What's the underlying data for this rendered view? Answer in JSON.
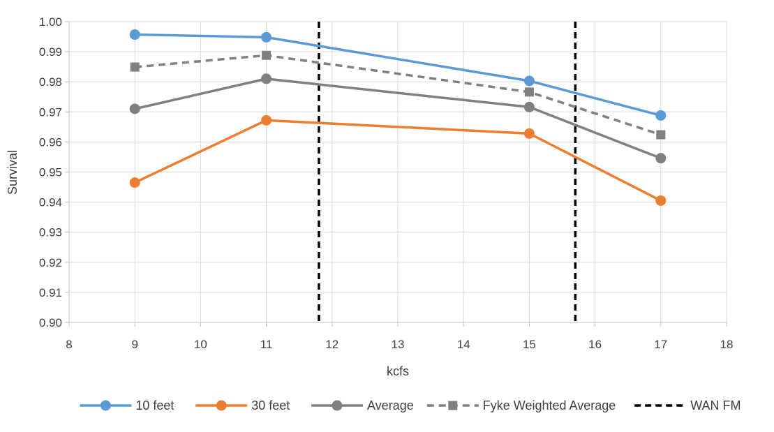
{
  "chart_data": {
    "type": "line",
    "title": "",
    "xlabel": "kcfs",
    "ylabel": "Survival",
    "xlim": [
      8,
      18
    ],
    "ylim": [
      0.9,
      1.0
    ],
    "x_ticks": [
      "8",
      "9",
      "10",
      "11",
      "12",
      "13",
      "14",
      "15",
      "16",
      "17",
      "18"
    ],
    "y_ticks": [
      "0.90",
      "0.91",
      "0.92",
      "0.93",
      "0.94",
      "0.95",
      "0.96",
      "0.97",
      "0.98",
      "0.99",
      "1.00"
    ],
    "grid": true,
    "legend_position": "bottom",
    "x": [
      9,
      11,
      15,
      17
    ],
    "series": [
      {
        "name": "10 feet",
        "color": "#5B9BD5",
        "style": "solid",
        "marker": "circle",
        "values": [
          0.9957,
          0.9948,
          0.9803,
          0.9688
        ]
      },
      {
        "name": "30 feet",
        "color": "#ED7D31",
        "style": "solid",
        "marker": "circle",
        "values": [
          0.9465,
          0.9672,
          0.9628,
          0.9405
        ]
      },
      {
        "name": "Average",
        "color": "#808080",
        "style": "solid",
        "marker": "circle",
        "values": [
          0.971,
          0.981,
          0.9716,
          0.9546
        ]
      },
      {
        "name": "Fyke Weighted Average",
        "color": "#808080",
        "style": "dashed",
        "marker": "square",
        "values": [
          0.9849,
          0.9888,
          0.9766,
          0.9624
        ]
      }
    ],
    "reference_lines": [
      {
        "name": "WAN FM",
        "color": "#000000",
        "style": "dashed",
        "x": [
          11.8,
          15.7
        ]
      }
    ]
  }
}
